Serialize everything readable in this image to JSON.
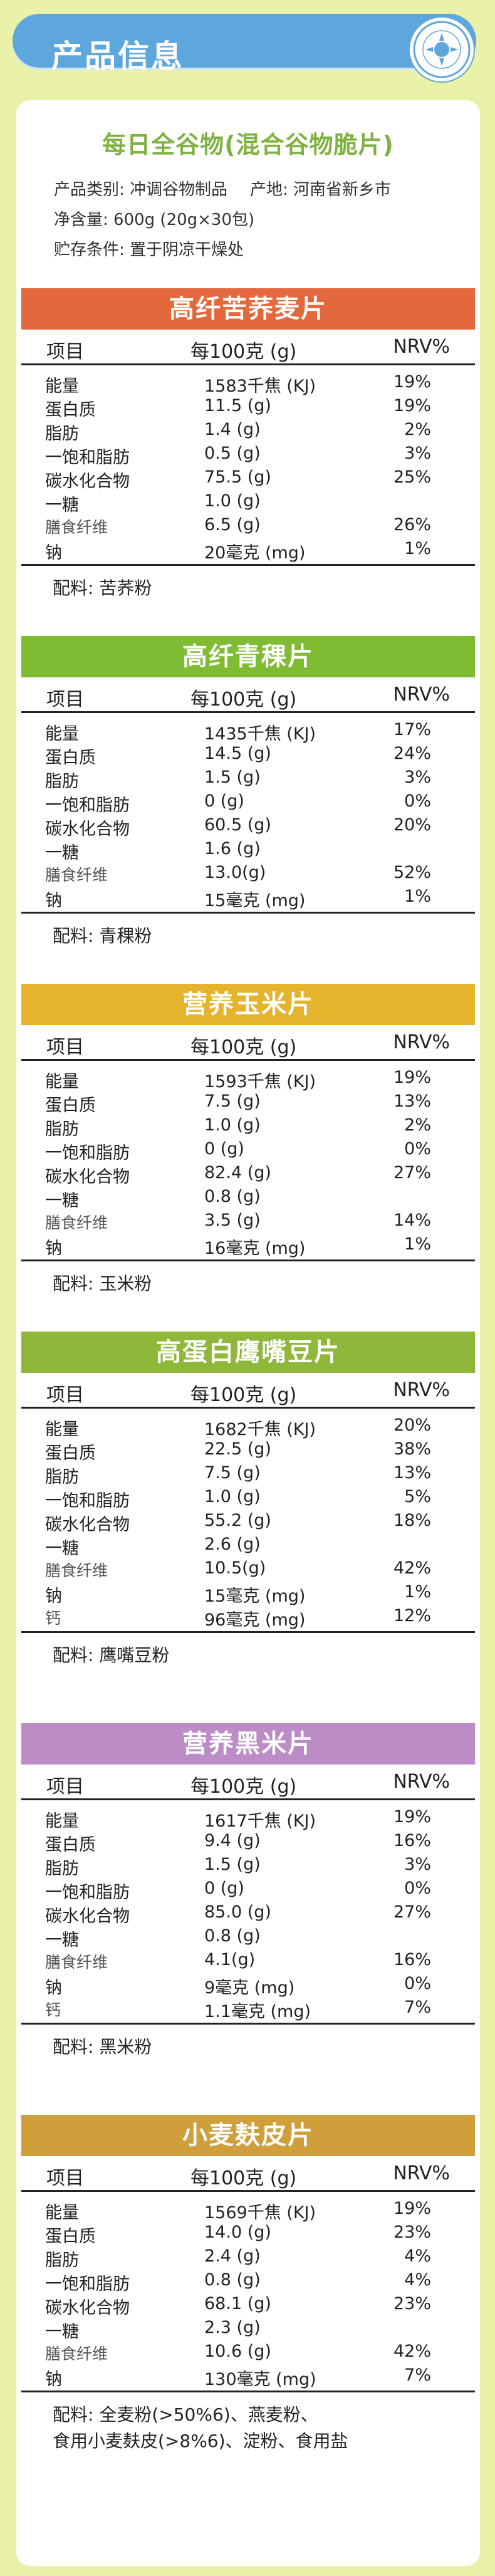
{
  "header": {
    "title": "产品信息"
  },
  "product": {
    "title": "每日全谷物(混合谷物脆片)",
    "category": "产品类别: 冲调谷物制品",
    "origin": "产地: 河南省新乡市",
    "net_content": "净含量:  600g (20g×30包)",
    "storage": "贮存条件: 置于阴凉干燥处"
  },
  "colors": {
    "header_bar": "#5ea7dc",
    "info_title": "#7fb241",
    "sections": [
      "#e3683d",
      "#7fbb33",
      "#e3b42c",
      "#8fb73a",
      "#bb8cc6",
      "#cf9f3c"
    ]
  },
  "table_header": {
    "item": "项目",
    "per100": "每100克 (g)",
    "nrv": "NRV%"
  },
  "sections": [
    {
      "title": "高纤苦荞麦片",
      "rows": [
        {
          "name": "能量",
          "value": "1583千焦 (KJ)",
          "nrv": "19%"
        },
        {
          "name": "蛋白质",
          "value": "11.5 (g)",
          "nrv": "19%"
        },
        {
          "name": "脂肪",
          "value": "1.4 (g)",
          "nrv": "2%"
        },
        {
          "name": "一饱和脂肪",
          "value": "0.5 (g)",
          "nrv": "3%"
        },
        {
          "name": "碳水化合物",
          "value": "75.5 (g)",
          "nrv": "25%"
        },
        {
          "name": "一糖",
          "value": "1.0 (g)",
          "nrv": ""
        },
        {
          "name": "膳食纤维",
          "value": "6.5 (g)",
          "nrv": "26%",
          "sub": true
        },
        {
          "name": "钠",
          "value": "20毫克 (mg)",
          "nrv": "1%"
        }
      ],
      "ingredients": "配料:  苦荞粉"
    },
    {
      "title": "高纤青稞片",
      "rows": [
        {
          "name": "能量",
          "value": "1435千焦 (KJ)",
          "nrv": "17%"
        },
        {
          "name": "蛋白质",
          "value": "14.5 (g)",
          "nrv": "24%"
        },
        {
          "name": "脂肪",
          "value": "1.5 (g)",
          "nrv": "3%"
        },
        {
          "name": "一饱和脂肪",
          "value": "0 (g)",
          "nrv": "0%"
        },
        {
          "name": "碳水化合物",
          "value": "60.5 (g)",
          "nrv": "20%"
        },
        {
          "name": "一糖",
          "value": "1.6 (g)",
          "nrv": ""
        },
        {
          "name": "膳食纤维",
          "value": "13.0(g)",
          "nrv": "52%",
          "sub": true
        },
        {
          "name": "钠",
          "value": "15毫克 (mg)",
          "nrv": "1%"
        }
      ],
      "ingredients": "配料:  青稞粉"
    },
    {
      "title": "营养玉米片",
      "rows": [
        {
          "name": "能量",
          "value": "1593千焦 (KJ)",
          "nrv": "19%"
        },
        {
          "name": "蛋白质",
          "value": "7.5 (g)",
          "nrv": "13%"
        },
        {
          "name": "脂肪",
          "value": "1.0 (g)",
          "nrv": "2%"
        },
        {
          "name": "一饱和脂肪",
          "value": "0 (g)",
          "nrv": "0%"
        },
        {
          "name": "碳水化合物",
          "value": "82.4 (g)",
          "nrv": "27%"
        },
        {
          "name": "一糖",
          "value": "0.8 (g)",
          "nrv": ""
        },
        {
          "name": "膳食纤维",
          "value": "3.5 (g)",
          "nrv": "14%",
          "sub": true
        },
        {
          "name": "钠",
          "value": "16毫克 (mg)",
          "nrv": "1%"
        }
      ],
      "ingredients": "配料:  玉米粉"
    },
    {
      "title": "高蛋白鹰嘴豆片",
      "rows": [
        {
          "name": "能量",
          "value": "1682千焦 (KJ)",
          "nrv": "20%"
        },
        {
          "name": "蛋白质",
          "value": "22.5 (g)",
          "nrv": "38%"
        },
        {
          "name": "脂肪",
          "value": "7.5 (g)",
          "nrv": "13%"
        },
        {
          "name": "一饱和脂肪",
          "value": "1.0 (g)",
          "nrv": "5%"
        },
        {
          "name": "碳水化合物",
          "value": "55.2 (g)",
          "nrv": "18%"
        },
        {
          "name": "一糖",
          "value": "2.6 (g)",
          "nrv": ""
        },
        {
          "name": "膳食纤维",
          "value": "10.5(g)",
          "nrv": "42%",
          "sub": true
        },
        {
          "name": "钠",
          "value": "15毫克 (mg)",
          "nrv": "1%"
        },
        {
          "name": "钙",
          "value": "96毫克 (mg)",
          "nrv": "12%",
          "sub": true
        }
      ],
      "ingredients": "配料:  鹰嘴豆粉"
    },
    {
      "title": "营养黑米片",
      "rows": [
        {
          "name": "能量",
          "value": "1617千焦 (KJ)",
          "nrv": "19%"
        },
        {
          "name": "蛋白质",
          "value": "9.4 (g)",
          "nrv": "16%"
        },
        {
          "name": "脂肪",
          "value": "1.5 (g)",
          "nrv": "3%"
        },
        {
          "name": "一饱和脂肪",
          "value": "0 (g)",
          "nrv": "0%"
        },
        {
          "name": "碳水化合物",
          "value": "85.0 (g)",
          "nrv": "27%"
        },
        {
          "name": "一糖",
          "value": "0.8 (g)",
          "nrv": ""
        },
        {
          "name": "膳食纤维",
          "value": "4.1(g)",
          "nrv": "16%",
          "sub": true
        },
        {
          "name": "钠",
          "value": "9毫克 (mg)",
          "nrv": "0%"
        },
        {
          "name": "钙",
          "value": "1.1毫克 (mg)",
          "nrv": "7%",
          "sub": true
        }
      ],
      "ingredients": "配料:  黑米粉"
    },
    {
      "title": "小麦麸皮片",
      "rows": [
        {
          "name": "能量",
          "value": "1569千焦 (KJ)",
          "nrv": "19%"
        },
        {
          "name": "蛋白质",
          "value": "14.0 (g)",
          "nrv": "23%"
        },
        {
          "name": "脂肪",
          "value": "2.4 (g)",
          "nrv": "4%"
        },
        {
          "name": "一饱和脂肪",
          "value": "0.8 (g)",
          "nrv": "4%"
        },
        {
          "name": "碳水化合物",
          "value": "68.1 (g)",
          "nrv": "23%"
        },
        {
          "name": "一糖",
          "value": "2.3 (g)",
          "nrv": ""
        },
        {
          "name": "膳食纤维",
          "value": "10.6 (g)",
          "nrv": "42%",
          "sub": true
        },
        {
          "name": "钠",
          "value": "130毫克 (mg)",
          "nrv": "7%"
        }
      ],
      "ingredients": "配料:  全麦粉(>50%6)、燕麦粉、\n食用小麦麸皮(>8%6)、淀粉、食用盐"
    }
  ]
}
